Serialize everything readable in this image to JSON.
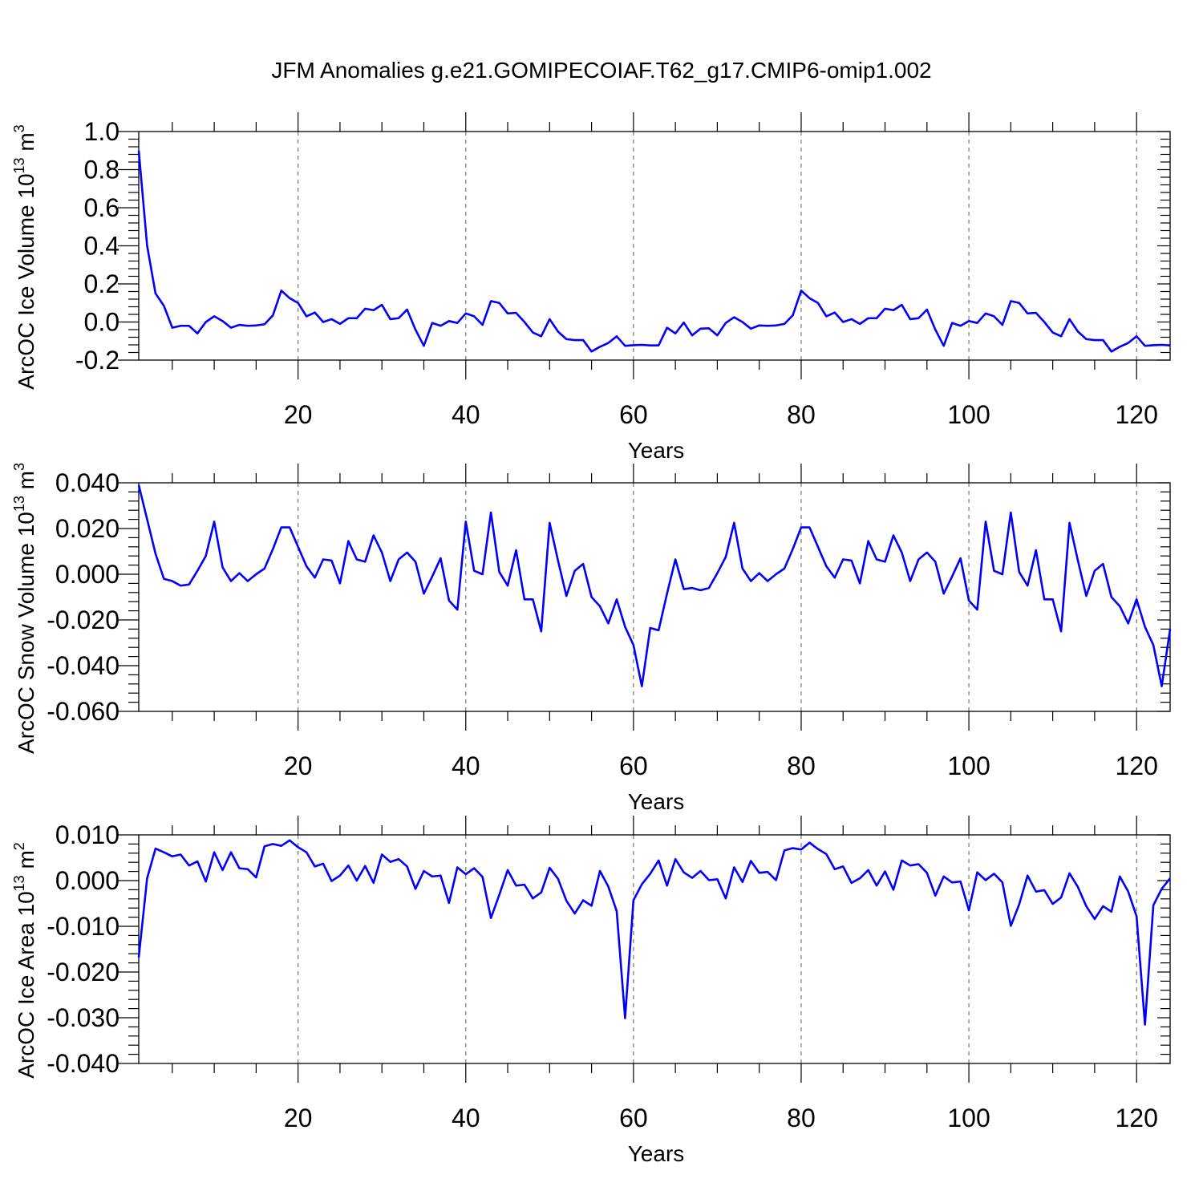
{
  "title": "JFM Anomalies g.e21.GOMIPECOIAF.T62_g17.CMIP6-omip1.002",
  "chart_data": [
    {
      "type": "line",
      "title": "",
      "xlabel": "Years",
      "ylabel": "ArcOC Ice Volume 10",
      "ylabel_sup1": "13",
      "ylabel_mid": " m",
      "ylabel_sup2": "3",
      "xlim": [
        1,
        124
      ],
      "ylim": [
        -0.2,
        1.0
      ],
      "xticks": [
        20,
        40,
        60,
        80,
        100,
        120
      ],
      "xtick_labels": [
        "20",
        "40",
        "60",
        "80",
        "100",
        "120"
      ],
      "yticks": [
        1.0,
        0.8,
        0.6,
        0.4,
        0.2,
        0.0,
        -0.2
      ],
      "ytick_labels": [
        "1.0",
        "0.8",
        "0.6",
        "0.4",
        "0.2",
        "0.0",
        "-0.2"
      ],
      "grid": "vertical dashed at major x ticks",
      "color": "#0000ff",
      "x": [
        1,
        2,
        3,
        4,
        5,
        6,
        7,
        8,
        9,
        10,
        11,
        12,
        13,
        14,
        15,
        16,
        17,
        18,
        19,
        20,
        21,
        22,
        23,
        24,
        25,
        26,
        27,
        28,
        29,
        30,
        31,
        32,
        33,
        34,
        35,
        36,
        37,
        38,
        39,
        40,
        41,
        42,
        43,
        44,
        45,
        46,
        47,
        48,
        49,
        50,
        51,
        52,
        53,
        54,
        55,
        56,
        57,
        58,
        59,
        60,
        61,
        62,
        63,
        64,
        65,
        66,
        67,
        68,
        69,
        70,
        71,
        72,
        73,
        74,
        75,
        76,
        77,
        78,
        79,
        80,
        81,
        82,
        83,
        84,
        85,
        86,
        87,
        88,
        89,
        90,
        91,
        92,
        93,
        94,
        95,
        96,
        97,
        98,
        99,
        100,
        101,
        102,
        103,
        104,
        105,
        106,
        107,
        108,
        109,
        110,
        111,
        112,
        113,
        114,
        115,
        116,
        117,
        118,
        119,
        120,
        121,
        122,
        123,
        124
      ],
      "values": [
        0.9,
        0.4,
        0.15,
        0.085,
        -0.03,
        -0.02,
        -0.02,
        -0.06,
        0.0,
        0.03,
        0.005,
        -0.03,
        -0.015,
        -0.02,
        -0.018,
        -0.012,
        0.035,
        0.165,
        0.125,
        0.1,
        0.03,
        0.05,
        0.0,
        0.015,
        -0.01,
        0.02,
        0.02,
        0.07,
        0.062,
        0.09,
        0.015,
        0.02,
        0.065,
        -0.04,
        -0.125,
        -0.005,
        -0.02,
        0.005,
        -0.005,
        0.045,
        0.03,
        -0.015,
        0.11,
        0.1,
        0.045,
        0.048,
        0.0,
        -0.055,
        -0.075,
        0.015,
        -0.05,
        -0.09,
        -0.095,
        -0.095,
        -0.155,
        -0.13,
        -0.11,
        -0.075,
        -0.125,
        -0.122,
        -0.12,
        -0.123,
        -0.123,
        -0.03,
        -0.06,
        -0.003,
        -0.07,
        -0.035,
        -0.033,
        -0.07,
        -0.005,
        0.025,
        0.0,
        -0.035,
        -0.018,
        -0.02,
        -0.018,
        -0.01,
        0.035,
        0.165,
        0.125,
        0.1,
        0.03,
        0.05,
        0.0,
        0.015,
        -0.01,
        0.02,
        0.02,
        0.07,
        0.062,
        0.09,
        0.015,
        0.02,
        0.065,
        -0.04,
        -0.125,
        -0.005,
        -0.02,
        0.005,
        -0.005,
        0.045,
        0.03,
        -0.015,
        0.11,
        0.1,
        0.045,
        0.048,
        0.0,
        -0.055,
        -0.075,
        0.015,
        -0.05,
        -0.09,
        -0.095,
        -0.095,
        -0.155,
        -0.13,
        -0.11,
        -0.075,
        -0.125,
        -0.122,
        -0.12,
        -0.123
      ]
    },
    {
      "type": "line",
      "title": "",
      "xlabel": "Years",
      "ylabel": "ArcOC Snow Volume 10",
      "ylabel_sup1": "13",
      "ylabel_mid": " m",
      "ylabel_sup2": "3",
      "xlim": [
        1,
        124
      ],
      "ylim": [
        -0.06,
        0.04
      ],
      "xticks": [
        20,
        40,
        60,
        80,
        100,
        120
      ],
      "xtick_labels": [
        "20",
        "40",
        "60",
        "80",
        "100",
        "120"
      ],
      "yticks": [
        0.04,
        0.02,
        0.0,
        -0.02,
        -0.04,
        -0.06
      ],
      "ytick_labels": [
        "0.040",
        "0.020",
        "0.000",
        "-0.020",
        "-0.040",
        "-0.060"
      ],
      "grid": "vertical dashed at major x ticks",
      "color": "#0000ff",
      "x": [
        1,
        2,
        3,
        4,
        5,
        6,
        7,
        8,
        9,
        10,
        11,
        12,
        13,
        14,
        15,
        16,
        17,
        18,
        19,
        20,
        21,
        22,
        23,
        24,
        25,
        26,
        27,
        28,
        29,
        30,
        31,
        32,
        33,
        34,
        35,
        36,
        37,
        38,
        39,
        40,
        41,
        42,
        43,
        44,
        45,
        46,
        47,
        48,
        49,
        50,
        51,
        52,
        53,
        54,
        55,
        56,
        57,
        58,
        59,
        60,
        61,
        62,
        63,
        64,
        65,
        66,
        67,
        68,
        69,
        70,
        71,
        72,
        73,
        74,
        75,
        76,
        77,
        78,
        79,
        80,
        81,
        82,
        83,
        84,
        85,
        86,
        87,
        88,
        89,
        90,
        91,
        92,
        93,
        94,
        95,
        96,
        97,
        98,
        99,
        100,
        101,
        102,
        103,
        104,
        105,
        106,
        107,
        108,
        109,
        110,
        111,
        112,
        113,
        114,
        115,
        116,
        117,
        118,
        119,
        120,
        121,
        122,
        123,
        124
      ],
      "values": [
        0.039,
        0.024,
        0.009,
        -0.002,
        -0.003,
        -0.005,
        -0.0045,
        0.0015,
        0.008,
        0.023,
        0.003,
        -0.003,
        0.0005,
        -0.003,
        0.0,
        0.0025,
        0.011,
        0.0205,
        0.0205,
        0.012,
        0.0035,
        -0.0015,
        0.0065,
        0.006,
        -0.004,
        0.0145,
        0.0065,
        0.0055,
        0.017,
        0.0095,
        -0.003,
        0.0065,
        0.0095,
        0.0055,
        -0.0085,
        -0.001,
        0.007,
        -0.0115,
        -0.0155,
        0.023,
        0.0015,
        0.0,
        0.027,
        0.001,
        -0.005,
        0.0105,
        -0.011,
        -0.011,
        -0.025,
        0.0225,
        0.006,
        -0.0095,
        0.0015,
        0.0045,
        -0.01,
        -0.014,
        -0.0215,
        -0.011,
        -0.023,
        -0.031,
        -0.049,
        -0.0235,
        -0.0245,
        -0.0085,
        0.0065,
        -0.0065,
        -0.006,
        -0.007,
        -0.006,
        0.0005,
        0.0075,
        0.0225,
        0.0025,
        -0.003,
        0.0005,
        -0.003,
        0.0,
        0.0025,
        0.011,
        0.0205,
        0.0205,
        0.012,
        0.0035,
        -0.0015,
        0.0065,
        0.006,
        -0.004,
        0.0145,
        0.0065,
        0.0055,
        0.017,
        0.0095,
        -0.003,
        0.0065,
        0.0095,
        0.0055,
        -0.0085,
        -0.001,
        0.007,
        -0.0115,
        -0.0155,
        0.023,
        0.0015,
        0.0,
        0.027,
        0.001,
        -0.005,
        0.0105,
        -0.011,
        -0.011,
        -0.025,
        0.0225,
        0.006,
        -0.0095,
        0.0015,
        0.0045,
        -0.01,
        -0.014,
        -0.0215,
        -0.011,
        -0.023,
        -0.031,
        -0.049,
        -0.024
      ]
    },
    {
      "type": "line",
      "title": "",
      "xlabel": "Years",
      "ylabel": "ArcOC Ice Area 10",
      "ylabel_sup1": "13",
      "ylabel_mid": " m",
      "ylabel_sup2": "2",
      "xlim": [
        1,
        124
      ],
      "ylim": [
        -0.04,
        0.01
      ],
      "xticks": [
        20,
        40,
        60,
        80,
        100,
        120
      ],
      "xtick_labels": [
        "20",
        "40",
        "60",
        "80",
        "100",
        "120"
      ],
      "yticks": [
        0.01,
        0.0,
        -0.01,
        -0.02,
        -0.03,
        -0.04
      ],
      "ytick_labels": [
        "0.010",
        "0.000",
        "-0.010",
        "-0.020",
        "-0.030",
        "-0.040"
      ],
      "grid": "vertical dashed at major x ticks",
      "color": "#0000ff",
      "x": [
        1,
        2,
        3,
        4,
        5,
        6,
        7,
        8,
        9,
        10,
        11,
        12,
        13,
        14,
        15,
        16,
        17,
        18,
        19,
        20,
        21,
        22,
        23,
        24,
        25,
        26,
        27,
        28,
        29,
        30,
        31,
        32,
        33,
        34,
        35,
        36,
        37,
        38,
        39,
        40,
        41,
        42,
        43,
        44,
        45,
        46,
        47,
        48,
        49,
        50,
        51,
        52,
        53,
        54,
        55,
        56,
        57,
        58,
        59,
        60,
        61,
        62,
        63,
        64,
        65,
        66,
        67,
        68,
        69,
        70,
        71,
        72,
        73,
        74,
        75,
        76,
        77,
        78,
        79,
        80,
        81,
        82,
        83,
        84,
        85,
        86,
        87,
        88,
        89,
        90,
        91,
        92,
        93,
        94,
        95,
        96,
        97,
        98,
        99,
        100,
        101,
        102,
        103,
        104,
        105,
        106,
        107,
        108,
        109,
        110,
        111,
        112,
        113,
        114,
        115,
        116,
        117,
        118,
        119,
        120,
        121,
        122,
        123,
        124
      ],
      "values": [
        -0.0168,
        0.0005,
        0.007,
        0.0062,
        0.0053,
        0.0057,
        0.0033,
        0.0042,
        -0.0002,
        0.0062,
        0.0023,
        0.0062,
        0.0027,
        0.0025,
        0.0007,
        0.0075,
        0.008,
        0.0076,
        0.0088,
        0.0073,
        0.0062,
        0.0031,
        0.0037,
        -0.0001,
        0.0011,
        0.0033,
        0.0,
        0.0032,
        -0.0005,
        0.0057,
        0.0041,
        0.0047,
        0.0031,
        -0.0018,
        0.0021,
        0.0009,
        0.0011,
        -0.0049,
        0.0029,
        0.0014,
        0.0027,
        0.0008,
        -0.0082,
        -0.0031,
        0.0023,
        -0.0011,
        -0.0009,
        -0.0039,
        -0.0026,
        0.0028,
        0.0004,
        -0.0044,
        -0.0072,
        -0.0043,
        -0.0055,
        0.0021,
        -0.0013,
        -0.0067,
        -0.0301,
        -0.0043,
        -0.0008,
        0.0015,
        0.0044,
        -0.0011,
        0.0047,
        0.0018,
        0.0006,
        0.0021,
        0.0001,
        0.0003,
        -0.0039,
        0.0029,
        -0.0003,
        0.0043,
        0.0017,
        0.0019,
        0.0001,
        0.0066,
        0.0071,
        0.0068,
        0.0083,
        0.0069,
        0.0058,
        0.0025,
        0.0031,
        -0.0005,
        0.0005,
        0.0023,
        -0.0011,
        0.002,
        -0.002,
        0.0044,
        0.0033,
        0.0036,
        0.0017,
        -0.0033,
        0.0009,
        -0.0004,
        -0.0002,
        -0.0065,
        0.0018,
        0.0001,
        0.0015,
        -0.0004,
        -0.0099,
        -0.0052,
        0.0011,
        -0.0024,
        -0.0021,
        -0.0051,
        -0.0037,
        0.0016,
        -0.0014,
        -0.0056,
        -0.0084,
        -0.0056,
        -0.0068,
        0.0009,
        -0.0024,
        -0.0078,
        -0.0315,
        -0.0054,
        -0.0018,
        0.0005
      ]
    }
  ]
}
